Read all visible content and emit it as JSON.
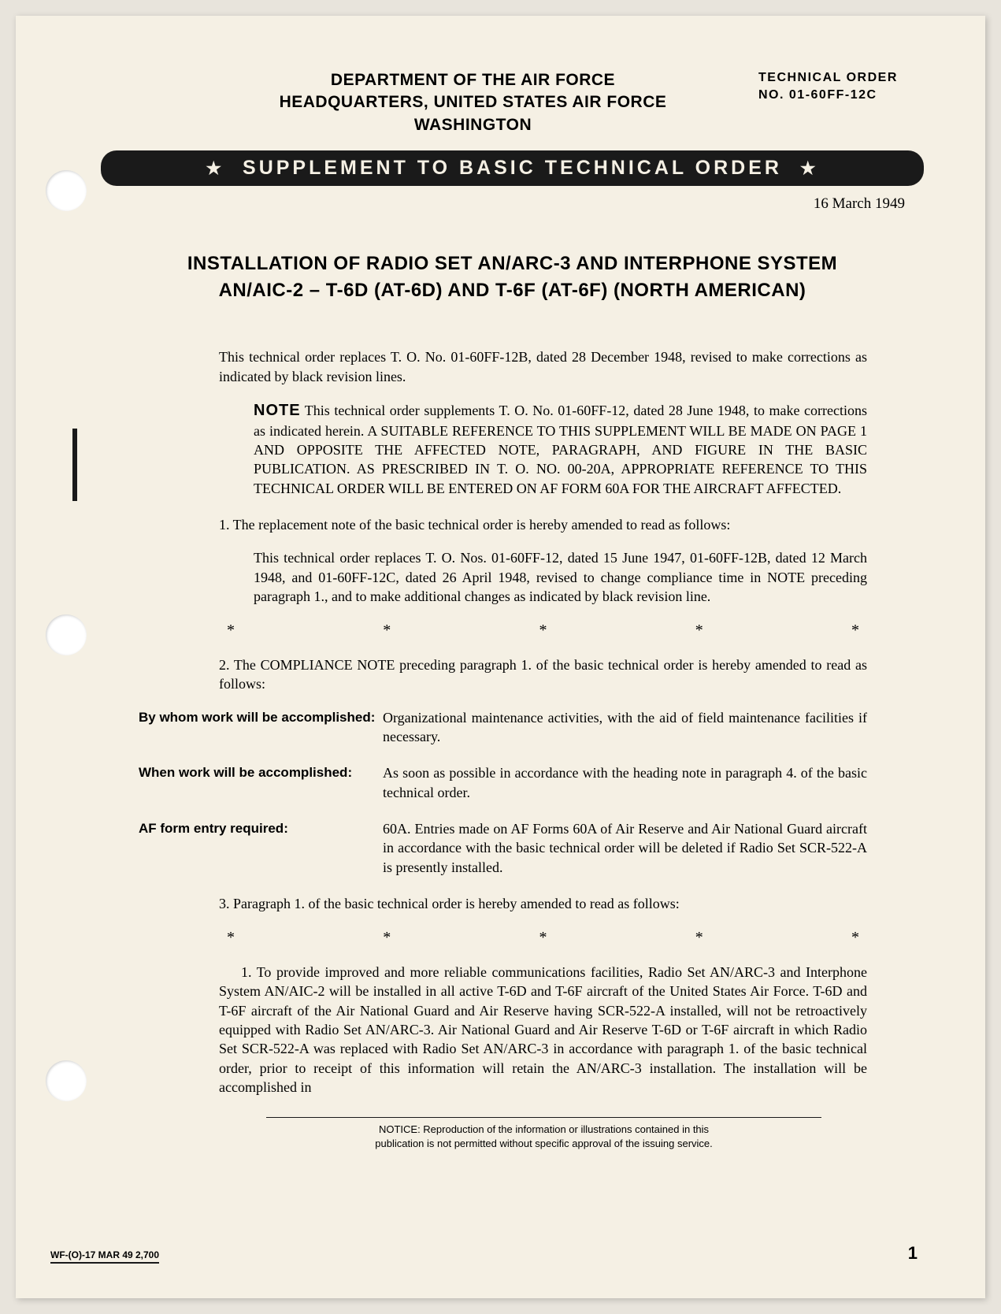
{
  "header": {
    "dept_line1": "DEPARTMENT OF THE AIR FORCE",
    "dept_line2": "HEADQUARTERS, UNITED STATES AIR FORCE",
    "dept_line3": "WASHINGTON",
    "tech_order_label": "TECHNICAL ORDER",
    "tech_order_no": "NO. 01-60FF-12C"
  },
  "banner": "SUPPLEMENT TO BASIC TECHNICAL ORDER",
  "date": "16 March 1949",
  "title_line1": "INSTALLATION OF RADIO SET AN/ARC-3 AND INTERPHONE SYSTEM",
  "title_line2": "AN/AIC-2 – T-6D (AT-6D) AND T-6F (AT-6F) (NORTH AMERICAN)",
  "intro": "This technical order replaces T. O. No. 01-60FF-12B, dated 28 December 1948, revised to make corrections as indicated by black revision lines.",
  "note_label": "NOTE",
  "note_text": " This technical order supplements T. O. No. 01-60FF-12, dated 28 June 1948, to make corrections as indicated herein. A SUITABLE REFERENCE TO THIS SUPPLEMENT WILL BE MADE ON PAGE 1 AND OPPOSITE THE AFFECTED NOTE, PARAGRAPH, AND FIGURE IN THE BASIC PUBLICATION. AS PRESCRIBED IN T. O. NO. 00-20A, APPROPRIATE REFERENCE TO THIS TECHNICAL ORDER WILL BE ENTERED ON AF FORM 60A FOR THE AIRCRAFT AFFECTED.",
  "para1_intro": "1. The replacement note of the basic technical order is hereby amended to read as follows:",
  "para1_block": "This technical order replaces T. O. Nos. 01-60FF-12, dated 15 June 1947, 01-60FF-12B, dated 12 March 1948, and 01-60FF-12C, dated 26 April 1948, revised to change compliance time in NOTE preceding paragraph 1., and to make additional changes as indicated by black revision line.",
  "para2_intro": "2. The COMPLIANCE NOTE preceding paragraph 1. of the basic technical order is hereby amended to read as follows:",
  "compliance": {
    "who_label": "By whom work will be accomplished:",
    "who_text": "Organizational maintenance activities, with the aid of field maintenance facilities if necessary.",
    "when_label": "When work will be accomplished:",
    "when_text": "As soon as possible in accordance with the heading note in paragraph 4. of the basic technical order.",
    "form_label": "AF form entry required:",
    "form_text": "60A. Entries made on AF Forms 60A of Air Reserve and Air National Guard aircraft in accordance with the basic technical order will be deleted if Radio Set SCR-522-A is presently installed."
  },
  "para3_intro": "3. Paragraph 1. of the basic technical order is hereby amended to read as follows:",
  "para3_block": "1. To provide improved and more reliable communications facilities, Radio Set AN/ARC-3 and Interphone System AN/AIC-2 will be installed in all active T-6D and T-6F aircraft of the United States Air Force. T-6D and T-6F aircraft of the Air National Guard and Air Reserve having SCR-522-A installed, will not be retroactively equipped with Radio Set AN/ARC-3. Air National Guard and Air Reserve T-6D or T-6F aircraft in which Radio Set SCR-522-A was replaced with Radio Set AN/ARC-3 in accordance with paragraph 1. of the basic technical order, prior to receipt of this information will retain the AN/ARC-3 installation. The installation will be accomplished in",
  "notice_line1": "NOTICE: Reproduction of the information or illustrations contained in this",
  "notice_line2": "publication is not permitted without specific approval of the issuing service.",
  "page_number": "1",
  "footer_code": "WF-(O)-17 MAR 49 2,700",
  "colors": {
    "page_bg": "#f5f0e4",
    "text": "#1a1a1a",
    "banner_bg": "#1a1a1a",
    "banner_fg": "#f5f0e4"
  }
}
